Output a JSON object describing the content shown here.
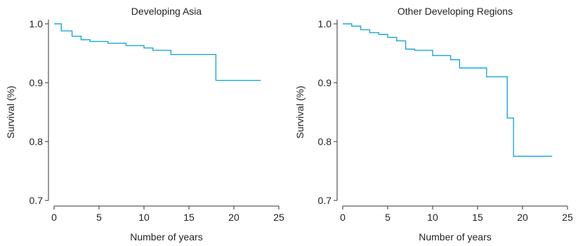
{
  "chart_data": [
    {
      "type": "line",
      "title": "Developing Asia",
      "xlabel": "Number of years",
      "ylabel": "Survival (%)",
      "xlim": [
        0,
        25
      ],
      "ylim": [
        0.7,
        1.0
      ],
      "xticks": [
        0,
        5,
        10,
        15,
        20,
        25
      ],
      "yticks": [
        0.7,
        0.8,
        0.9,
        1.0
      ],
      "xtick_labels": [
        "0",
        "5",
        "10",
        "15",
        "20",
        "25"
      ],
      "ytick_labels": [
        "0.7",
        "0.8",
        "0.9",
        "1.0"
      ],
      "grid": false,
      "series": [
        {
          "color": "#1ba8d8",
          "step": true,
          "x": [
            0,
            0.8,
            2.0,
            3.0,
            4.0,
            6.0,
            8.0,
            10.0,
            11.0,
            13.0,
            18.0,
            23.0
          ],
          "y": [
            1.0,
            0.988,
            0.979,
            0.973,
            0.97,
            0.967,
            0.963,
            0.959,
            0.955,
            0.948,
            0.904,
            0.904
          ]
        }
      ]
    },
    {
      "type": "line",
      "title": "Other Developing Regions",
      "xlabel": "Number of years",
      "ylabel": "Survival (%)",
      "xlim": [
        0,
        25
      ],
      "ylim": [
        0.7,
        1.0
      ],
      "xticks": [
        0,
        5,
        10,
        15,
        20,
        25
      ],
      "yticks": [
        0.7,
        0.8,
        0.9,
        1.0
      ],
      "xtick_labels": [
        "0",
        "5",
        "10",
        "15",
        "20",
        "25"
      ],
      "ytick_labels": [
        "0.7",
        "0.8",
        "0.9",
        "1.0"
      ],
      "grid": false,
      "series": [
        {
          "color": "#1ba8d8",
          "step": true,
          "x": [
            0,
            1.0,
            2.0,
            3.0,
            4.0,
            5.0,
            6.0,
            7.0,
            8.0,
            10.0,
            12.0,
            13.0,
            16.0,
            18.3,
            19.0,
            23.3
          ],
          "y": [
            1.0,
            0.996,
            0.99,
            0.985,
            0.982,
            0.977,
            0.971,
            0.957,
            0.955,
            0.946,
            0.939,
            0.925,
            0.91,
            0.84,
            0.775,
            0.775
          ]
        }
      ]
    }
  ]
}
